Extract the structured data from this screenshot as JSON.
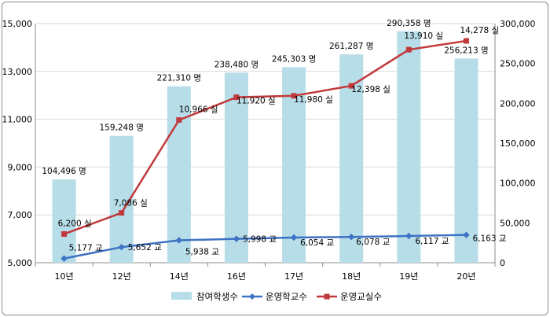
{
  "chart_data": {
    "type": "bar",
    "categories": [
      "10년",
      "12년",
      "14년",
      "16년",
      "17년",
      "18년",
      "19년",
      "20년"
    ],
    "left_axis": {
      "min": 5000,
      "max": 15000,
      "ticks": [
        "5,000",
        "7,000",
        "9,000",
        "11,000",
        "13,000",
        "15,000"
      ]
    },
    "right_axis": {
      "min": 0,
      "max": 300000,
      "ticks": [
        "0",
        "50,000",
        "100,000",
        "150,000",
        "200,000",
        "250,000",
        "300,000"
      ]
    },
    "grid": true,
    "legend_position": "bottom",
    "series": [
      {
        "name": "참여학생수",
        "kind": "bar",
        "axis": "right",
        "color": "#b7dde8",
        "values": [
          104496,
          159248,
          221310,
          238480,
          245303,
          261287,
          290358,
          256213
        ],
        "labels": [
          "104,496 명",
          "159,248 명",
          "221,310 명",
          "238,480 명",
          "245,303 명",
          "261,287 명",
          "290,358 명",
          "256,213 명"
        ]
      },
      {
        "name": "운영학교수",
        "kind": "line",
        "axis": "left",
        "color": "#3d72c4",
        "marker": "diamond",
        "values": [
          5177,
          5652,
          5938,
          5998,
          6054,
          6078,
          6117,
          6163
        ],
        "labels": [
          "5,177 교",
          "5,652 교",
          "5,938 교",
          "5,998 교",
          "6,054 교",
          "6,078 교",
          "6,117 교",
          "6,163 교"
        ]
      },
      {
        "name": "운영교실수",
        "kind": "line",
        "axis": "left",
        "color": "#c0393b",
        "marker": "square",
        "values": [
          6200,
          7086,
          10966,
          11920,
          11980,
          12398,
          13910,
          14278
        ],
        "labels": [
          "6,200 실",
          "7,086 실",
          "10,966 실",
          "11,920 실",
          "11,980 실",
          "12,398 실",
          "13,910 실",
          "14,278 실"
        ]
      }
    ]
  }
}
